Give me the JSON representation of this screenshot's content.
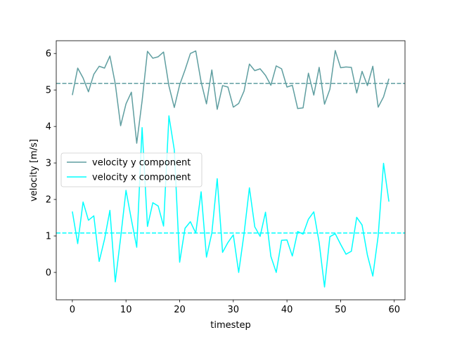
{
  "chart_data": {
    "type": "line",
    "title": "",
    "xlabel": "timestep",
    "ylabel": "velocity [m/s]",
    "xlim": [
      -3,
      62
    ],
    "ylim": [
      -0.75,
      6.35
    ],
    "xticks": [
      0,
      10,
      20,
      30,
      40,
      50,
      60
    ],
    "yticks": [
      0,
      1,
      2,
      3,
      4,
      5,
      6
    ],
    "grid": false,
    "legend_position": "center-left",
    "x": [
      0,
      1,
      2,
      3,
      4,
      5,
      6,
      7,
      8,
      9,
      10,
      11,
      12,
      13,
      14,
      15,
      16,
      17,
      18,
      19,
      20,
      21,
      22,
      23,
      24,
      25,
      26,
      27,
      28,
      29,
      30,
      31,
      32,
      33,
      34,
      35,
      36,
      37,
      38,
      39,
      40,
      41,
      42,
      43,
      44,
      45,
      46,
      47,
      48,
      49,
      50,
      51,
      52,
      53,
      54,
      55,
      56,
      57,
      58,
      59
    ],
    "series": [
      {
        "name": "velocity y component",
        "color": "#5f9ea0",
        "mean_line": 5.18,
        "values": [
          4.86,
          5.6,
          5.33,
          4.95,
          5.43,
          5.65,
          5.6,
          5.93,
          5.17,
          4.02,
          4.62,
          4.94,
          3.54,
          4.7,
          6.06,
          5.87,
          5.91,
          6.04,
          5.11,
          4.52,
          5.14,
          5.55,
          6.0,
          6.07,
          5.22,
          4.62,
          5.55,
          4.47,
          5.12,
          5.08,
          4.53,
          4.63,
          4.97,
          5.71,
          5.53,
          5.58,
          5.4,
          5.13,
          5.66,
          5.58,
          5.08,
          5.13,
          4.49,
          4.51,
          5.46,
          4.86,
          5.62,
          4.61,
          5.02,
          6.08,
          5.61,
          5.63,
          5.62,
          4.92,
          5.51,
          5.12,
          5.65,
          4.53,
          4.81,
          5.31
        ]
      },
      {
        "name": "velocity x component",
        "color": "#00ffff",
        "mean_line": 1.08,
        "values": [
          1.67,
          0.79,
          1.93,
          1.43,
          1.55,
          0.3,
          0.91,
          1.7,
          -0.26,
          0.95,
          2.25,
          1.45,
          0.69,
          3.97,
          1.26,
          1.91,
          1.82,
          1.27,
          4.29,
          3.36,
          0.28,
          1.21,
          1.39,
          1.08,
          2.21,
          0.42,
          1.08,
          2.57,
          0.55,
          0.82,
          1.03,
          0.0,
          1.06,
          2.32,
          1.25,
          0.99,
          1.65,
          0.44,
          0.0,
          0.88,
          0.89,
          0.45,
          1.12,
          1.05,
          1.46,
          1.66,
          0.82,
          -0.4,
          0.98,
          1.06,
          0.77,
          0.5,
          0.58,
          1.51,
          1.3,
          0.47,
          -0.1,
          1.0,
          2.99,
          1.94
        ]
      }
    ]
  }
}
